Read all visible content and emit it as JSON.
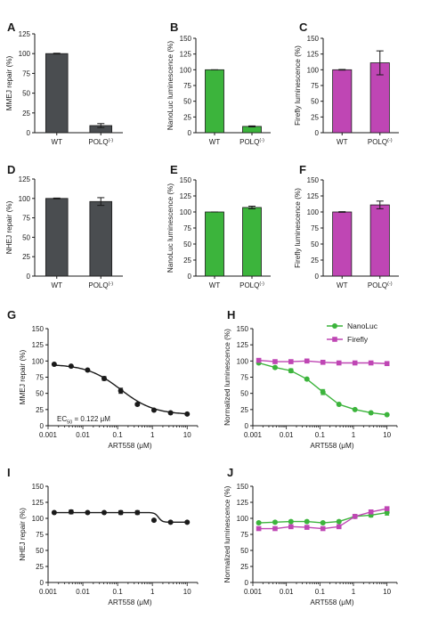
{
  "figure": {
    "background": "#ffffff"
  },
  "chart_data": [
    {
      "panel": "A",
      "type": "bar",
      "categories": [
        "WT",
        "POLQ(-)"
      ],
      "values": [
        100,
        9
      ],
      "errors": [
        0.5,
        2.5
      ],
      "ylabel": "MMEJ repair (%)",
      "ylim": [
        0,
        125
      ],
      "yticks": [
        "0",
        "25",
        "50",
        "75",
        "100",
        "125"
      ],
      "color": "#4a4d50"
    },
    {
      "panel": "B",
      "type": "bar",
      "categories": [
        "WT",
        "POLQ(-)"
      ],
      "values": [
        100,
        10
      ],
      "errors": [
        0,
        0.8
      ],
      "ylabel": "NanoLuc luminescence (%)",
      "ylim": [
        0,
        150
      ],
      "yticks": [
        "0",
        "25",
        "50",
        "75",
        "100",
        "125",
        "150"
      ],
      "color": "#3cb43c"
    },
    {
      "panel": "C",
      "type": "bar",
      "categories": [
        "WT",
        "POLQ(-)"
      ],
      "values": [
        100,
        111
      ],
      "errors": [
        0.5,
        19
      ],
      "ylabel": "Firefly luminescence (%)",
      "ylim": [
        0,
        150
      ],
      "yticks": [
        "0",
        "25",
        "50",
        "75",
        "100",
        "125",
        "150"
      ],
      "color": "#bf46b4"
    },
    {
      "panel": "D",
      "type": "bar",
      "categories": [
        "WT",
        "POLQ(-)"
      ],
      "values": [
        100,
        96
      ],
      "errors": [
        0.5,
        5
      ],
      "ylabel": "NHEJ repair (%)",
      "ylim": [
        0,
        125
      ],
      "yticks": [
        "0",
        "25",
        "50",
        "75",
        "100",
        "125"
      ],
      "color": "#4a4d50"
    },
    {
      "panel": "E",
      "type": "bar",
      "categories": [
        "WT",
        "POLQ(-)"
      ],
      "values": [
        100,
        107
      ],
      "errors": [
        0,
        2
      ],
      "ylabel": "NanoLuc luminescence (%)",
      "ylim": [
        0,
        150
      ],
      "yticks": [
        "0",
        "25",
        "50",
        "75",
        "100",
        "125",
        "150"
      ],
      "color": "#3cb43c"
    },
    {
      "panel": "F",
      "type": "bar",
      "categories": [
        "WT",
        "POLQ(-)"
      ],
      "values": [
        100,
        111
      ],
      "errors": [
        0.5,
        6
      ],
      "ylabel": "Firefly luminescence (%)",
      "ylim": [
        0,
        150
      ],
      "yticks": [
        "0",
        "25",
        "50",
        "75",
        "100",
        "125",
        "150"
      ],
      "color": "#bf46b4"
    },
    {
      "panel": "G",
      "type": "line",
      "x": [
        0.0015,
        0.0046,
        0.0137,
        0.041,
        0.123,
        0.37,
        1.11,
        3.33,
        10
      ],
      "series": [
        {
          "values": [
            95,
            92,
            86,
            73,
            54,
            33,
            24,
            20,
            18
          ],
          "errors": [
            0,
            0,
            0,
            3,
            4,
            2,
            0,
            0,
            0
          ],
          "color": "#1a1a1a",
          "marker": "circle"
        }
      ],
      "fit": {
        "top": 95,
        "bottom": 17,
        "ec50": 0.122,
        "hill": 0.9
      },
      "xlabel": "ART558 (μM)",
      "ylabel": "MMEJ repair (%)",
      "xscale": "log",
      "xlim": [
        0.001,
        20
      ],
      "xticks": [
        "0.001",
        "0.01",
        "0.1",
        "1",
        "10"
      ],
      "ylim": [
        0,
        150
      ],
      "yticks": [
        "0",
        "25",
        "50",
        "75",
        "100",
        "125",
        "150"
      ],
      "annotation": {
        "prefix": "EC",
        "sub": "50",
        "suffix": " = 0.122 μM"
      }
    },
    {
      "panel": "H",
      "type": "line",
      "x": [
        0.0015,
        0.0046,
        0.0137,
        0.041,
        0.123,
        0.37,
        1.11,
        3.33,
        10
      ],
      "series": [
        {
          "name": "NanoLuc",
          "values": [
            97,
            90,
            85,
            72,
            52,
            33,
            25,
            20,
            17
          ],
          "errors": [
            0,
            2,
            3,
            0,
            4,
            0,
            0,
            0,
            0
          ],
          "color": "#3cb43c",
          "marker": "circle"
        },
        {
          "name": "Firefly",
          "values": [
            101,
            99,
            99,
            100,
            98,
            97,
            97,
            97,
            96
          ],
          "errors": [
            2,
            0,
            0,
            0,
            0,
            0,
            0,
            0,
            2
          ],
          "color": "#bf46b4",
          "marker": "square"
        }
      ],
      "xlabel": "ART558 (μM)",
      "ylabel": "Normalized luminescence (%)",
      "xscale": "log",
      "xlim": [
        0.001,
        20
      ],
      "xticks": [
        "0.001",
        "0.01",
        "0.1",
        "1",
        "10"
      ],
      "ylim": [
        0,
        150
      ],
      "yticks": [
        "0",
        "25",
        "50",
        "75",
        "100",
        "125",
        "150"
      ],
      "legend": "top-right"
    },
    {
      "panel": "I",
      "type": "line",
      "x": [
        0.0015,
        0.0046,
        0.0137,
        0.041,
        0.123,
        0.37,
        1.11,
        3.33,
        10
      ],
      "series": [
        {
          "values": [
            109,
            110,
            109,
            109,
            109,
            109,
            97,
            94,
            94
          ],
          "errors": [
            0,
            3,
            0,
            0,
            3,
            3,
            0,
            0,
            0
          ],
          "color": "#1a1a1a",
          "marker": "circle"
        }
      ],
      "fit": {
        "step": true,
        "top": 109,
        "bottom": 94,
        "mid": 1.5,
        "hill": 8
      },
      "xlabel": "ART558 (μM)",
      "ylabel": "NHEJ repair (%)",
      "xscale": "log",
      "xlim": [
        0.001,
        20
      ],
      "xticks": [
        "0.001",
        "0.01",
        "0.1",
        "1",
        "10"
      ],
      "ylim": [
        0,
        150
      ],
      "yticks": [
        "0",
        "25",
        "50",
        "75",
        "100",
        "125",
        "150"
      ]
    },
    {
      "panel": "J",
      "type": "line",
      "x": [
        0.0015,
        0.0046,
        0.0137,
        0.041,
        0.123,
        0.37,
        1.11,
        3.33,
        10
      ],
      "series": [
        {
          "name": "NanoLuc",
          "values": [
            93,
            94,
            95,
            95,
            93,
            95,
            103,
            105,
            109
          ],
          "errors": [
            2,
            2,
            2,
            2,
            2,
            2,
            2,
            3,
            4
          ],
          "color": "#3cb43c",
          "marker": "circle"
        },
        {
          "name": "Firefly",
          "values": [
            84,
            84,
            87,
            86,
            84,
            87,
            103,
            110,
            115
          ],
          "errors": [
            2,
            0,
            2,
            2,
            2,
            2,
            2,
            3,
            3
          ],
          "color": "#bf46b4",
          "marker": "square"
        }
      ],
      "xlabel": "ART558 (μM)",
      "ylabel": "Normalized luminescence (%)",
      "xscale": "log",
      "xlim": [
        0.001,
        20
      ],
      "xticks": [
        "0.001",
        "0.01",
        "0.1",
        "1",
        "10"
      ],
      "ylim": [
        0,
        150
      ],
      "yticks": [
        "0",
        "25",
        "50",
        "75",
        "100",
        "125",
        "150"
      ]
    }
  ]
}
